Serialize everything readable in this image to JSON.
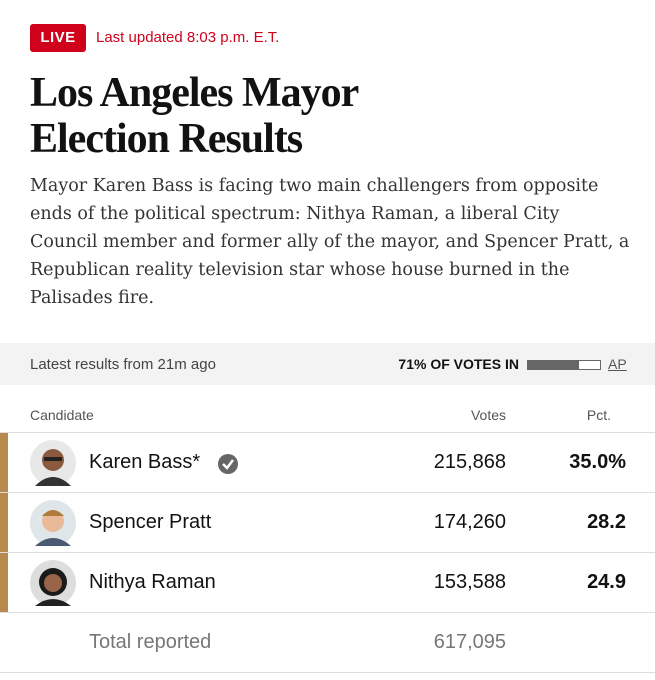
{
  "header": {
    "badge": "LIVE",
    "updated": "Last updated 8:03 p.m. E.T.",
    "title": "Los Angeles Mayor Election Results",
    "description": "Mayor Karen Bass is facing two main challengers from opposite ends of the political spectrum: Nithya Raman, a liberal City Council member and former ally of the mayor, and Spencer Pratt, a Republican reality television star whose house burned in the Palisades fire."
  },
  "status": {
    "latest": "Latest results from 21m ago",
    "reporting_label": "71% OF VOTES IN",
    "reporting_percent": 71,
    "source": "AP"
  },
  "table": {
    "columns": [
      "Candidate",
      "Votes",
      "Pct."
    ],
    "rows": [
      [
        "Karen Bass*",
        "215,868",
        "35.0%"
      ],
      [
        "Spencer Pratt",
        "174,260",
        "28.2"
      ],
      [
        "Nithya Raman",
        "153,588",
        "24.9"
      ]
    ],
    "total": [
      "Total reported",
      "617,095"
    ]
  }
}
